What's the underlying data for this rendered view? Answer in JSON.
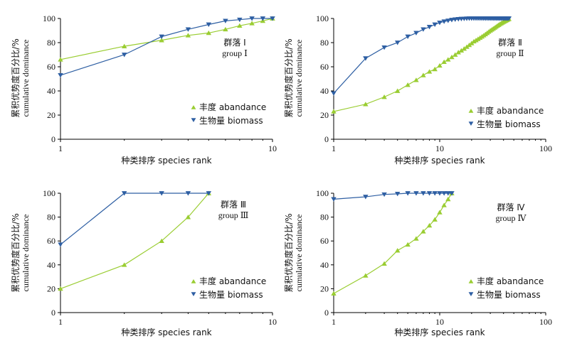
{
  "colors": {
    "abundance": "#9acd32",
    "biomass": "#2e5fa3",
    "axis": "#000000"
  },
  "common": {
    "ylabel_cn": "累积优势度百分比/%",
    "ylabel_en": "cumulative dominance",
    "xlabel": "种类排序 species rank",
    "legend_abundance": "丰度 abandance",
    "legend_biomass": "生物量 biomass",
    "y_ticks": [
      "0",
      "20",
      "40",
      "60",
      "80",
      "100"
    ]
  },
  "chart_data": [
    {
      "type": "line",
      "x_scale": "log",
      "xlim": [
        1,
        10
      ],
      "ylim": [
        0,
        100
      ],
      "x_ticks": [
        "1",
        "10"
      ],
      "group_label_cn": "群落 Ⅰ",
      "group_label_en": "group Ⅰ",
      "legend_position": "bottom-right",
      "series": [
        {
          "key": "abundance",
          "marker": "triangle-up",
          "x": [
            1,
            2,
            3,
            4,
            5,
            6,
            7,
            8,
            9,
            10
          ],
          "y": [
            66,
            77,
            82,
            86,
            88,
            91,
            94,
            96,
            98,
            100
          ]
        },
        {
          "key": "biomass",
          "marker": "triangle-down",
          "x": [
            1,
            2,
            3,
            4,
            5,
            6,
            7,
            8,
            9,
            10
          ],
          "y": [
            53,
            70,
            85,
            91,
            95,
            98,
            99,
            100,
            100,
            100
          ]
        }
      ]
    },
    {
      "type": "line",
      "x_scale": "log",
      "xlim": [
        1,
        100
      ],
      "ylim": [
        0,
        100
      ],
      "x_ticks": [
        "1",
        "10",
        "100"
      ],
      "group_label_cn": "群落 Ⅱ",
      "group_label_en": "group Ⅱ",
      "legend_position": "bottom-right",
      "series": [
        {
          "key": "abundance",
          "marker": "triangle-up",
          "x": [
            1,
            2,
            3,
            4,
            5,
            6,
            7,
            8,
            9,
            10,
            11,
            12,
            13,
            14,
            15,
            16,
            17,
            18,
            19,
            20,
            21,
            22,
            23,
            24,
            25,
            26,
            27,
            28,
            29,
            30,
            31,
            32,
            33,
            34,
            35,
            36,
            37,
            38,
            39,
            40,
            41,
            42,
            43,
            44,
            45
          ],
          "y": [
            23,
            29,
            35,
            40,
            45,
            49,
            53,
            56,
            58,
            61,
            64,
            66,
            68,
            70,
            72,
            73.5,
            75,
            76.5,
            78,
            79.5,
            81,
            82,
            83,
            84,
            85,
            86,
            87,
            88,
            89,
            90,
            90.8,
            91.6,
            92.4,
            93.2,
            94,
            94.7,
            95.4,
            96,
            96.6,
            97.2,
            97.7,
            98.2,
            98.7,
            99.2,
            99.6
          ]
        },
        {
          "key": "biomass",
          "marker": "triangle-down",
          "x": [
            1,
            2,
            3,
            4,
            5,
            6,
            7,
            8,
            9,
            10,
            11,
            12,
            13,
            14,
            15,
            16,
            17,
            18,
            19,
            20,
            21,
            22,
            23,
            24,
            25,
            26,
            27,
            28,
            29,
            30,
            31,
            32,
            33,
            34,
            35,
            36,
            37,
            38,
            39,
            40,
            41,
            42,
            43,
            44,
            45
          ],
          "y": [
            38,
            67,
            76,
            80,
            85,
            88,
            91,
            93,
            95,
            96.5,
            97.5,
            98.2,
            98.8,
            99.2,
            99.5,
            99.7,
            99.8,
            99.9,
            100,
            100,
            100,
            100,
            100,
            100,
            100,
            100,
            100,
            100,
            100,
            100,
            100,
            100,
            100,
            100,
            100,
            100,
            100,
            100,
            100,
            100,
            100,
            100,
            100,
            100,
            100
          ]
        }
      ]
    },
    {
      "type": "line",
      "x_scale": "log",
      "xlim": [
        1,
        10
      ],
      "ylim": [
        0,
        100
      ],
      "x_ticks": [
        "1",
        "10"
      ],
      "group_label_cn": "群落 Ⅲ",
      "group_label_en": "group Ⅲ",
      "legend_position": "bottom-right",
      "series": [
        {
          "key": "abundance",
          "marker": "triangle-up",
          "x": [
            1,
            2,
            3,
            4,
            5
          ],
          "y": [
            20,
            40,
            60,
            80,
            100
          ]
        },
        {
          "key": "biomass",
          "marker": "triangle-down",
          "x": [
            1,
            2,
            3,
            4,
            5
          ],
          "y": [
            57,
            100,
            100,
            100,
            100
          ]
        }
      ]
    },
    {
      "type": "line",
      "x_scale": "log",
      "xlim": [
        1,
        100
      ],
      "ylim": [
        0,
        100
      ],
      "x_ticks": [
        "1",
        "10",
        "100"
      ],
      "group_label_cn": "群落 Ⅳ",
      "group_label_en": "group Ⅳ",
      "legend_position": "bottom-right",
      "series": [
        {
          "key": "abundance",
          "marker": "triangle-up",
          "x": [
            1,
            2,
            3,
            4,
            5,
            6,
            7,
            8,
            9,
            10,
            11,
            12,
            13
          ],
          "y": [
            16,
            31,
            41,
            52,
            57,
            62,
            68,
            73,
            78,
            84,
            90,
            95,
            100
          ]
        },
        {
          "key": "biomass",
          "marker": "triangle-down",
          "x": [
            1,
            2,
            3,
            4,
            5,
            6,
            7,
            8,
            9,
            10,
            11,
            12,
            13
          ],
          "y": [
            95,
            97,
            99,
            99.5,
            100,
            100,
            100,
            100,
            100,
            100,
            100,
            100,
            100
          ]
        }
      ]
    }
  ]
}
